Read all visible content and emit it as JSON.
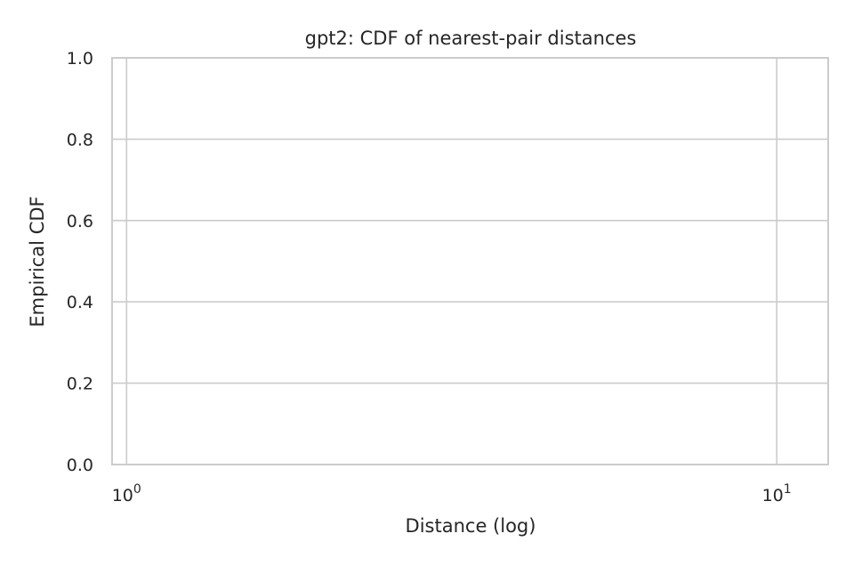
{
  "chart_data": {
    "type": "line",
    "title": "gpt2: CDF of nearest-pair distances",
    "xlabel": "Distance (log)",
    "ylabel": "Empirical CDF",
    "xscale": "log",
    "xlim": [
      0.95,
      12.0
    ],
    "ylim": [
      0,
      1
    ],
    "x_ticks": [
      {
        "value": 1,
        "base": "10",
        "exp": "0"
      },
      {
        "value": 10,
        "base": "10",
        "exp": "1"
      }
    ],
    "y_ticks": [
      {
        "value": 0.0,
        "label": "0.0"
      },
      {
        "value": 0.2,
        "label": "0.2"
      },
      {
        "value": 0.4,
        "label": "0.4"
      },
      {
        "value": 0.6,
        "label": "0.6"
      },
      {
        "value": 0.8,
        "label": "0.8"
      },
      {
        "value": 1.0,
        "label": "1.0"
      }
    ],
    "grid": true,
    "series": []
  }
}
